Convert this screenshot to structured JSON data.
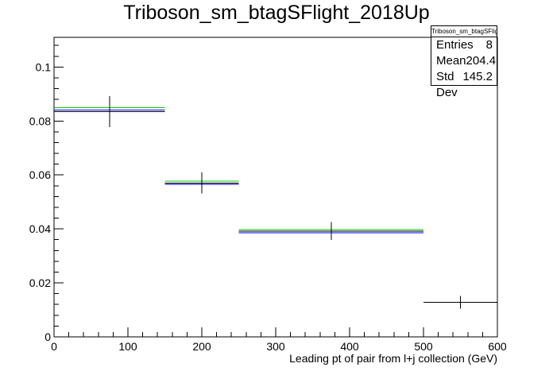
{
  "title": "Triboson_sm_btagSFlight_2018Up",
  "statbox": {
    "title": "Triboson_sm_btagSFlight_2018Up",
    "rows": [
      {
        "label": "Entries",
        "value": "8"
      },
      {
        "label": "Mean",
        "value": "204.4"
      },
      {
        "label": "Std Dev",
        "value": "145.2"
      }
    ]
  },
  "chart_data": {
    "type": "line",
    "title": "Triboson_sm_btagSFlight_2018Up",
    "xlabel": "Leading pt of pair from l+j collection (GeV)",
    "ylabel": "",
    "xlim": [
      0,
      600
    ],
    "ylim": [
      0,
      0.111
    ],
    "xticks": [
      0,
      100,
      200,
      300,
      400,
      500,
      600
    ],
    "xtick_labels": [
      "0",
      "100",
      "200",
      "300",
      "400",
      "500",
      "600"
    ],
    "yticks": [
      0,
      0.02,
      0.04,
      0.06,
      0.08,
      0.1
    ],
    "ytick_labels": [
      "0",
      "0.02",
      "0.04",
      "0.06",
      "0.08",
      "0.1"
    ],
    "grid": false,
    "bins": [
      [
        0,
        150
      ],
      [
        150,
        250
      ],
      [
        250,
        500
      ],
      [
        500,
        600
      ]
    ],
    "series": [
      {
        "color": "#000000",
        "values": [
          0.0835,
          0.057,
          0.0392,
          0.0128
        ],
        "errors": [
          0.0057,
          0.0039,
          0.0033,
          0.0023
        ],
        "error_bars": true
      },
      {
        "color": "#0000ff",
        "values": [
          0.084,
          0.0566,
          0.0386,
          null
        ],
        "error_bars": false
      },
      {
        "color": "#00cc00",
        "values": [
          0.085,
          0.0577,
          0.0398,
          null
        ],
        "error_bars": false
      }
    ]
  }
}
